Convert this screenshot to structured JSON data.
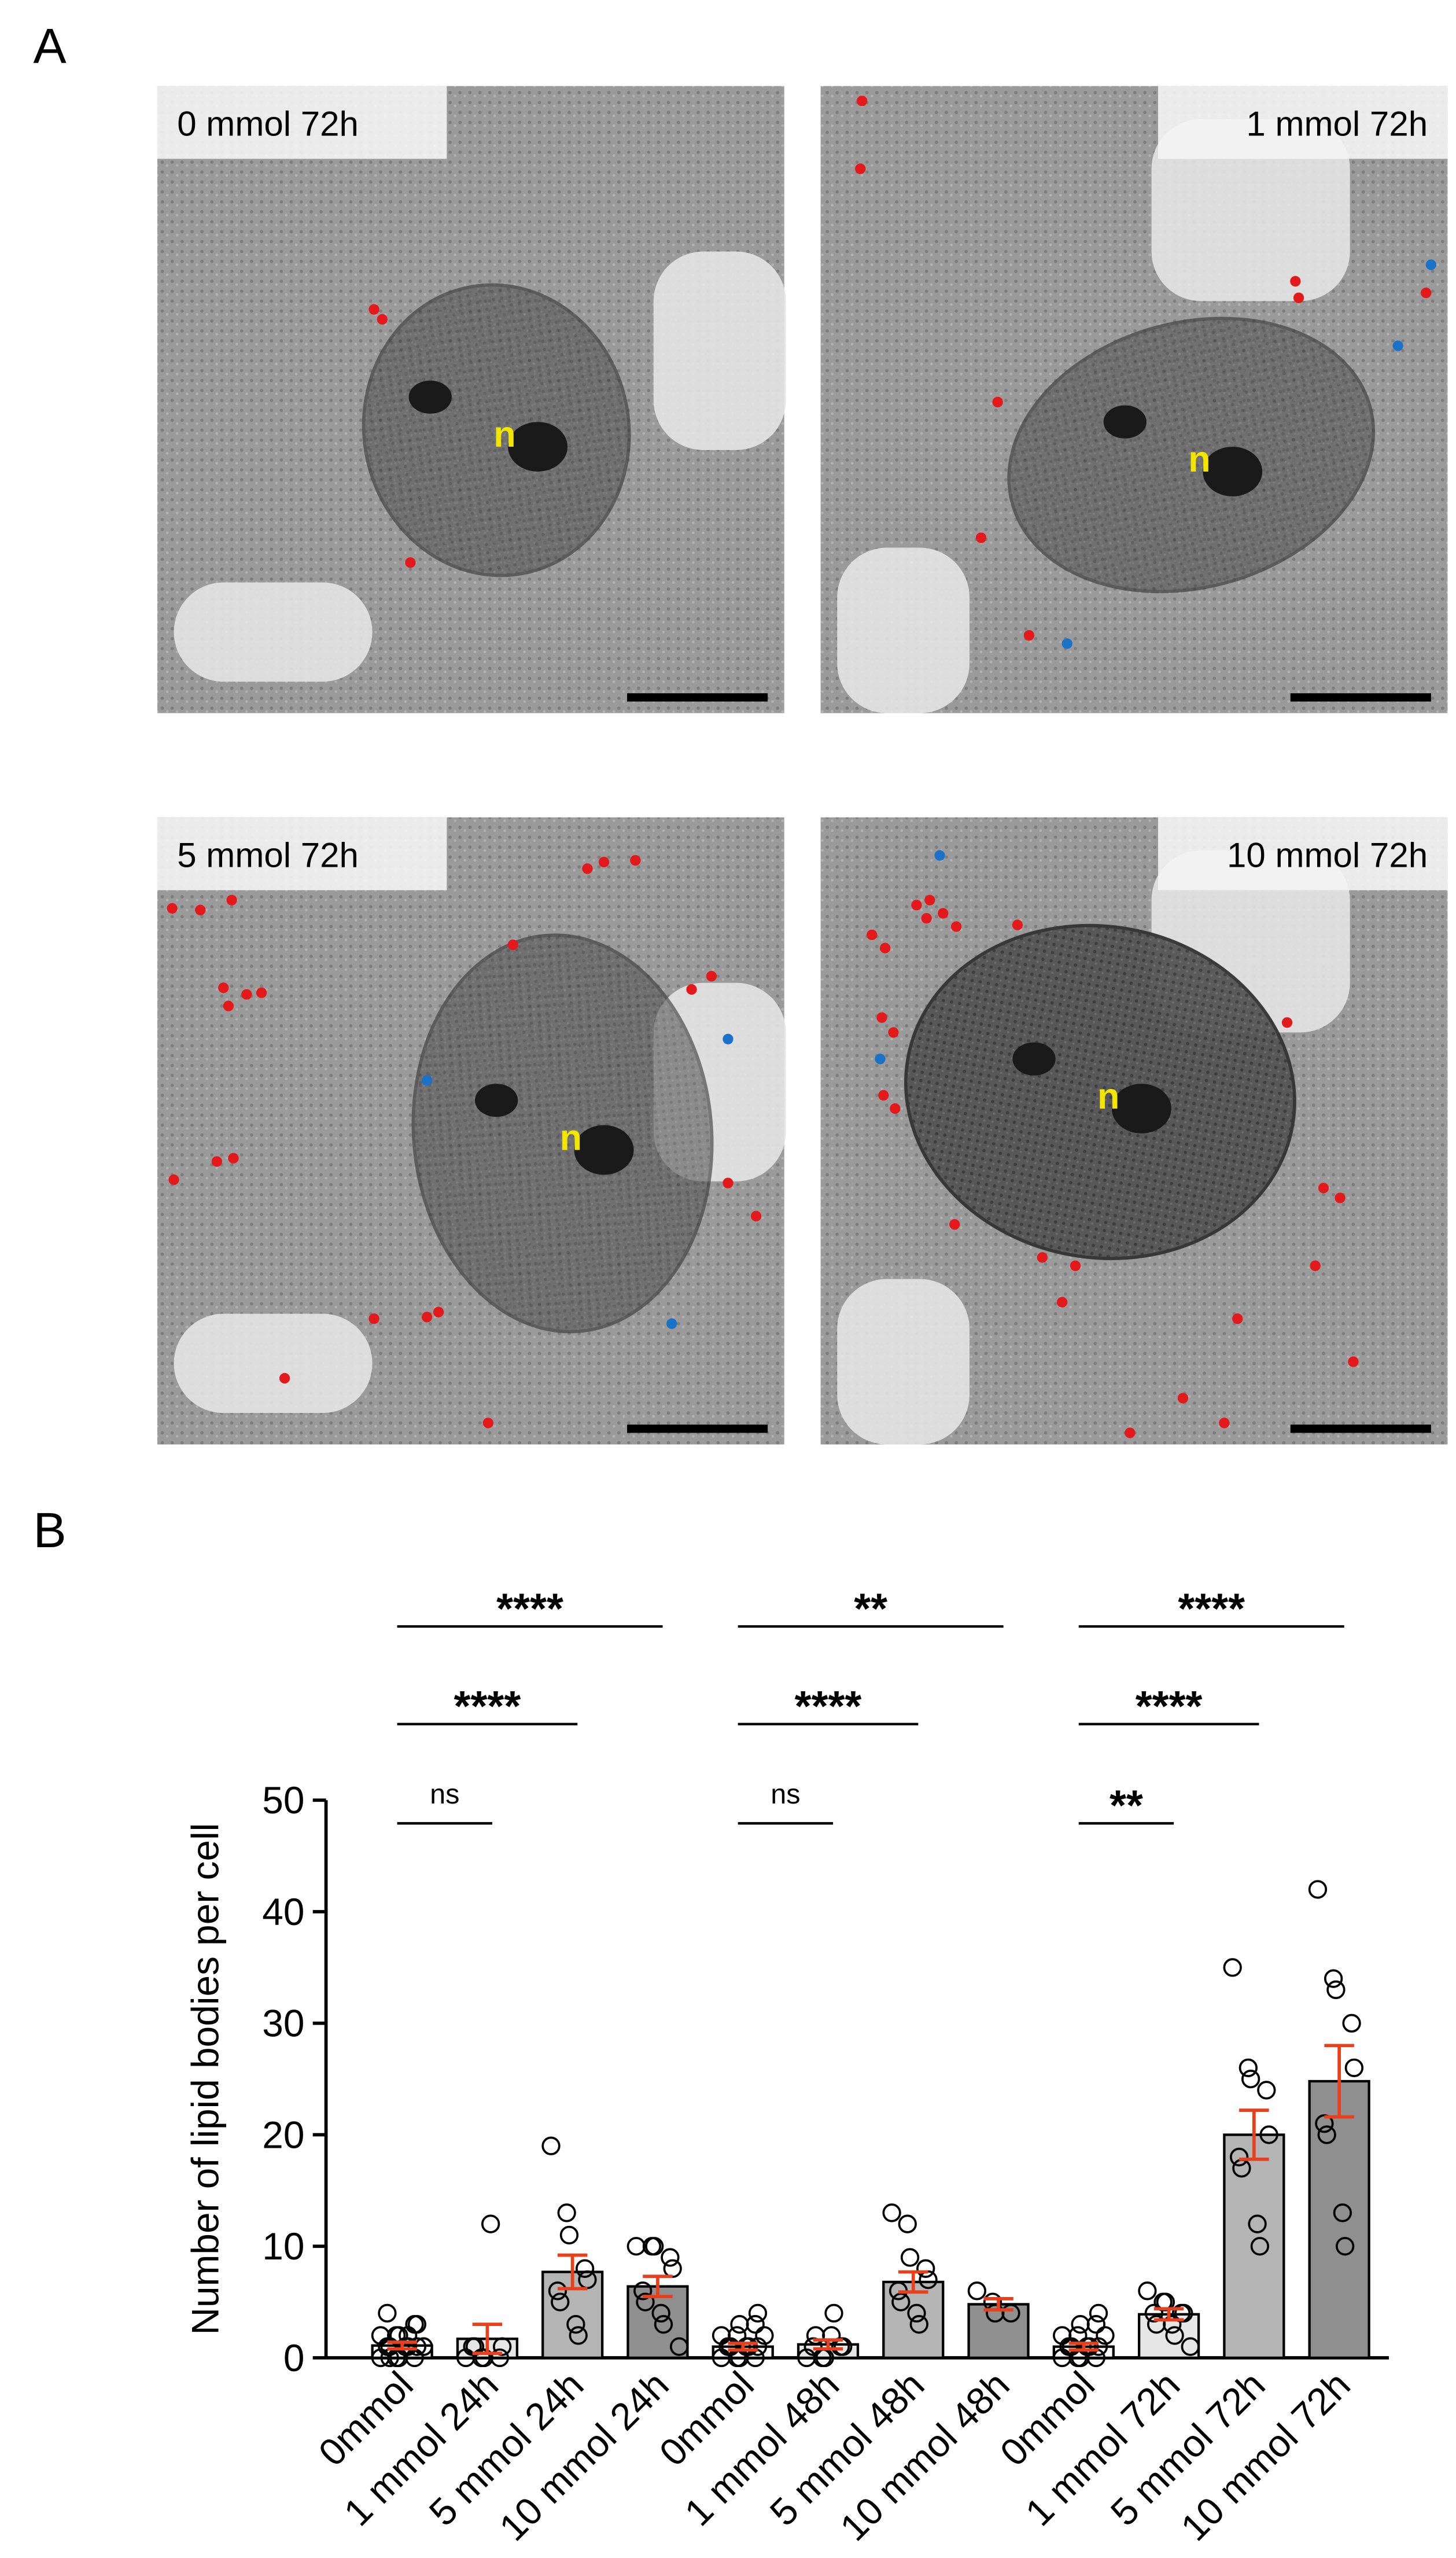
{
  "panel_a": {
    "label": "A",
    "images": [
      {
        "label": "0 mmol 72h",
        "nucleus": "n"
      },
      {
        "label": "1 mmol 72h",
        "nucleus": "n"
      },
      {
        "label": "5 mmol 72h",
        "nucleus": "n"
      },
      {
        "label": "10 mmol 72h",
        "nucleus": "n"
      }
    ]
  },
  "chart_data": {
    "type": "bar",
    "panel_label": "B",
    "y_label": "Number of lipid bodies per cell",
    "categories": [
      "0mmol",
      "1 mmol 24h",
      "5 mmol 24h",
      "10 mmol 24h",
      "0mmol",
      "1 mmol 48h",
      "5 mmol 48h",
      "10 mmol 48h",
      "0mmol",
      "1 mmol 72h",
      "5 mmol 72h",
      "10 mmol 72h"
    ],
    "values": [
      1.1,
      1.7,
      7.7,
      6.4,
      1.0,
      1.2,
      6.8,
      4.8,
      1.0,
      3.9,
      20.0,
      24.8
    ],
    "errors": [
      0.3,
      1.3,
      1.5,
      0.9,
      0.3,
      0.4,
      0.9,
      0.5,
      0.3,
      0.5,
      2.2,
      3.2
    ],
    "colors": [
      "#ffffff",
      "#e6e6e6",
      "#b4b4b4",
      "#8f8f8f",
      "#ffffff",
      "#e6e6e6",
      "#b4b4b4",
      "#8f8f8f",
      "#ffffff",
      "#e6e6e6",
      "#b4b4b4",
      "#8f8f8f"
    ],
    "error_color": "#e8401c",
    "points": [
      [
        0,
        0,
        0,
        0,
        1,
        1,
        1,
        1,
        1,
        1,
        2,
        2,
        2,
        3,
        3,
        4,
        0,
        1,
        2,
        1
      ],
      [
        0,
        0,
        0,
        0,
        1,
        1,
        1,
        12
      ],
      [
        19,
        13,
        11,
        8,
        7,
        6,
        5,
        3,
        2
      ],
      [
        10,
        10,
        10,
        9,
        8,
        6,
        5,
        4,
        3,
        1
      ],
      [
        0,
        0,
        0,
        0,
        1,
        1,
        1,
        1,
        1,
        2,
        2,
        2,
        3,
        3,
        4
      ],
      [
        0,
        0,
        0,
        1,
        1,
        1,
        2,
        2,
        4
      ],
      [
        13,
        12,
        9,
        8,
        7,
        6,
        5,
        4,
        3
      ],
      [
        6,
        5,
        4,
        4
      ],
      [
        0,
        0,
        0,
        0,
        1,
        1,
        1,
        1,
        1,
        2,
        2,
        2,
        3,
        3,
        4
      ],
      [
        6,
        5,
        5,
        4,
        4,
        4,
        3,
        3,
        2,
        1
      ],
      [
        35,
        26,
        25,
        24,
        20,
        18,
        17,
        12,
        10
      ],
      [
        42,
        34,
        33,
        30,
        26,
        21,
        20,
        13,
        10
      ]
    ],
    "comparisons": [
      {
        "pair": [
          0,
          1
        ],
        "label": "ns"
      },
      {
        "pair": [
          0,
          2
        ],
        "label": "****"
      },
      {
        "pair": [
          0,
          3
        ],
        "label": "****"
      },
      {
        "pair": [
          4,
          5
        ],
        "label": "ns"
      },
      {
        "pair": [
          4,
          6
        ],
        "label": "****"
      },
      {
        "pair": [
          4,
          7
        ],
        "label": "**"
      },
      {
        "pair": [
          8,
          9
        ],
        "label": "**"
      },
      {
        "pair": [
          8,
          10
        ],
        "label": "****"
      },
      {
        "pair": [
          8,
          11
        ],
        "label": "****"
      }
    ],
    "ylim": [
      0,
      50
    ],
    "yticks": [
      0,
      10,
      20,
      30,
      40,
      50
    ]
  }
}
